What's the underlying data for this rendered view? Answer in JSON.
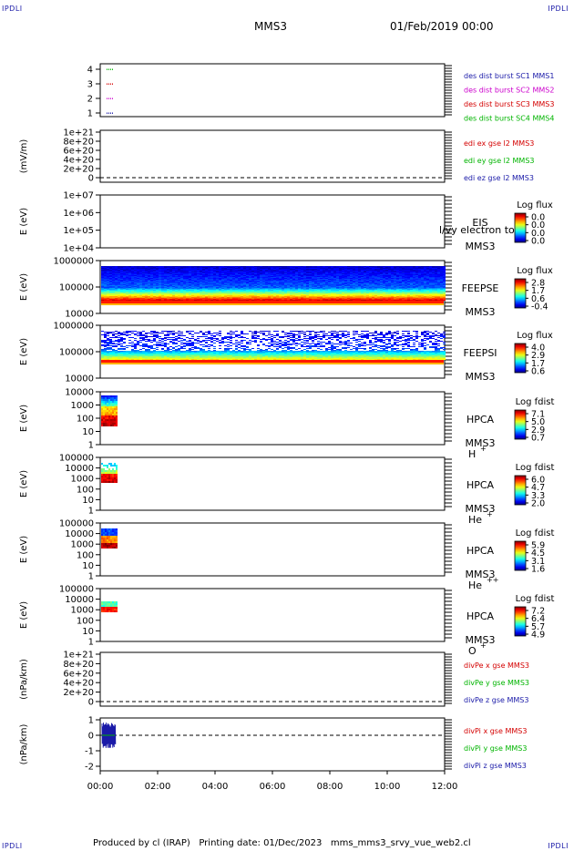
{
  "corners": {
    "tl": "IPDLI",
    "tr": "IPDLI",
    "bl": "IPDLI",
    "br": "IPDLI"
  },
  "header": {
    "spacecraft": "MMS3",
    "date": "01/Feb/2019 00:00"
  },
  "footer": {
    "text": "Produced by cl (IRAP)   Printing date: 01/Dec/2023   mms_mms3_srvy_vue_web2.cl"
  },
  "time_axis": {
    "ticks": [
      "00:00",
      "02:00",
      "04:00",
      "06:00",
      "08:00",
      "10:00",
      "12:00"
    ]
  },
  "chart_data": [
    {
      "type": "scatter",
      "panel": "des",
      "yticks": [
        "4",
        "3",
        "2",
        "1"
      ],
      "legend": [
        {
          "label": "des dist burst SC1 MMS1",
          "color": "#1a1aa8"
        },
        {
          "label": "des dist burst SC2 MMS2",
          "color": "#cc00cc"
        },
        {
          "label": "des dist burst SC3 MMS3",
          "color": "#d40000"
        },
        {
          "label": "des dist burst SC4 MMS4",
          "color": "#00b400"
        }
      ]
    },
    {
      "type": "line",
      "panel": "edi",
      "ylabel": "(mV/m)",
      "yticks": [
        "1e+21",
        "8e+20",
        "6e+20",
        "4e+20",
        "2e+20",
        "0"
      ],
      "legend": [
        {
          "label": "edi ex gse l2 MMS3",
          "color": "#d40000"
        },
        {
          "label": "edi ey gse l2 MMS3",
          "color": "#00b400"
        },
        {
          "label": "edi ez gse l2 MMS3",
          "color": "#1a1aa8"
        }
      ]
    },
    {
      "type": "heatmap",
      "panel": "eis",
      "ylabel": "E (eV)",
      "yticks": [
        "1e+07",
        "1e+06",
        "1e+05",
        "1e+04"
      ],
      "name": "EIS",
      "name2": "MMS3",
      "overlay": "l/vy electron to",
      "cb_title": "Log flux",
      "cb_ticks": [
        "0.0",
        "0.0",
        "0.0",
        "0.0"
      ]
    },
    {
      "type": "heatmap",
      "panel": "feepse",
      "ylabel": "E (eV)",
      "yticks": [
        "1000000",
        "100000",
        "10000"
      ],
      "name": "FEEPSE",
      "name2": "MMS3",
      "cb_title": "Log flux",
      "cb_ticks": [
        "2.8",
        "1.7",
        "0.6",
        "-0.4"
      ]
    },
    {
      "type": "heatmap",
      "panel": "feepsi",
      "ylabel": "E (eV)",
      "yticks": [
        "1000000",
        "100000",
        "10000"
      ],
      "name": "FEEPSI",
      "name2": "MMS3",
      "cb_title": "Log flux",
      "cb_ticks": [
        "4.0",
        "2.9",
        "1.7",
        "0.6"
      ]
    },
    {
      "type": "heatmap",
      "panel": "hpca_h",
      "ylabel": "E (eV)",
      "yticks": [
        "10000",
        "1000",
        "100",
        "10",
        "1"
      ],
      "name": "HPCA",
      "name2": "MMS3",
      "species": "H",
      "charge": "+",
      "cb_title": "Log fdist",
      "cb_ticks": [
        "7.1",
        "5.0",
        "2.9",
        "0.7"
      ]
    },
    {
      "type": "heatmap",
      "panel": "hpca_he",
      "ylabel": "E (eV)",
      "yticks": [
        "100000",
        "10000",
        "1000",
        "100",
        "10",
        "1"
      ],
      "name": "HPCA",
      "name2": "MMS3",
      "species": "He",
      "charge": "+",
      "cb_title": "Log fdist",
      "cb_ticks": [
        "6.0",
        "4.7",
        "3.3",
        "2.0"
      ]
    },
    {
      "type": "heatmap",
      "panel": "hpca_he2",
      "ylabel": "E (eV)",
      "yticks": [
        "100000",
        "10000",
        "1000",
        "100",
        "10",
        "1"
      ],
      "name": "HPCA",
      "name2": "MMS3",
      "species": "He",
      "charge": "++",
      "cb_title": "Log fdist",
      "cb_ticks": [
        "5.9",
        "4.5",
        "3.1",
        "1.6"
      ]
    },
    {
      "type": "heatmap",
      "panel": "hpca_o",
      "ylabel": "E (eV)",
      "yticks": [
        "100000",
        "10000",
        "1000",
        "100",
        "10",
        "1"
      ],
      "name": "HPCA",
      "name2": "MMS3",
      "species": "O",
      "charge": "+",
      "cb_title": "Log fdist",
      "cb_ticks": [
        "7.2",
        "6.4",
        "5.7",
        "4.9"
      ]
    },
    {
      "type": "line",
      "panel": "divpe",
      "ylabel": "(nPa/km)",
      "yticks": [
        "1e+21",
        "8e+20",
        "6e+20",
        "4e+20",
        "2e+20",
        "0"
      ],
      "legend": [
        {
          "label": "divPe x gse MMS3",
          "color": "#d40000"
        },
        {
          "label": "divPe y gse MMS3",
          "color": "#00b400"
        },
        {
          "label": "divPe z gse MMS3",
          "color": "#1a1aa8"
        }
      ]
    },
    {
      "type": "line",
      "panel": "divpi",
      "ylabel": "(nPa/km)",
      "yticks": [
        "1",
        "0",
        "-1",
        "-2"
      ],
      "legend": [
        {
          "label": "divPi x gse MMS3",
          "color": "#d40000"
        },
        {
          "label": "divPi y gse MMS3",
          "color": "#00b400"
        },
        {
          "label": "divPi z gse MMS3",
          "color": "#1a1aa8"
        }
      ]
    }
  ]
}
